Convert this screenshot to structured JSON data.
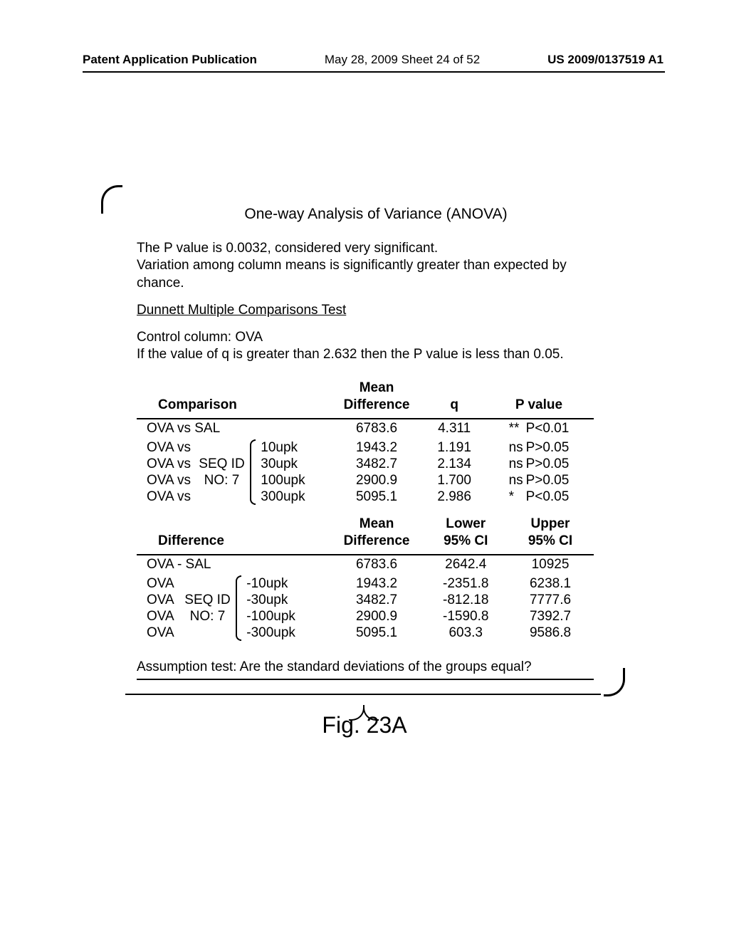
{
  "header": {
    "left": "Patent Application Publication",
    "center": "May 28, 2009  Sheet 24 of 52",
    "right": "US 2009/0137519 A1"
  },
  "anova": {
    "title": "One-way Analysis of Variance (ANOVA)",
    "p_line": "The P value is 0.0032, considered very significant.",
    "variation_line": "Variation among column means is significantly greater than expected by chance.",
    "dunnett_heading": "Dunnett Multiple Comparisons Test",
    "control_line": "Control column: OVA",
    "q_line": "If the value of q is greater than 2.632 then the P value is less than 0.05.",
    "assumption": "Assumption test: Are the standard deviations of the groups equal?"
  },
  "table1": {
    "headers": [
      "Comparison",
      "Mean Difference",
      "q",
      "P value"
    ],
    "group_label_line1": "SEQ ID",
    "group_label_line2": "NO: 7",
    "rows": [
      {
        "left": "OVA vs SAL",
        "mid": "",
        "right": "",
        "mean": "6783.6",
        "q": "4.311",
        "sig": "**",
        "p": "P<0.01"
      },
      {
        "left": "OVA vs",
        "mid": "",
        "right": "10upk",
        "mean": "1943.2",
        "q": "1.191",
        "sig": "ns",
        "p": "P>0.05"
      },
      {
        "left": "OVA vs",
        "mid": "SEQ ID",
        "right": "30upk",
        "mean": "3482.7",
        "q": "2.134",
        "sig": "ns",
        "p": "P>0.05"
      },
      {
        "left": "OVA vs",
        "mid": "NO: 7",
        "right": "100upk",
        "mean": "2900.9",
        "q": "1.700",
        "sig": "ns",
        "p": "P>0.05"
      },
      {
        "left": "OVA vs",
        "mid": "",
        "right": "300upk",
        "mean": "5095.1",
        "q": "2.986",
        "sig": "*",
        "p": "P<0.05"
      }
    ]
  },
  "table2": {
    "headers": [
      "Difference",
      "Mean Difference",
      "Lower 95% CI",
      "Upper 95% CI"
    ],
    "rows": [
      {
        "left": "OVA - SAL",
        "mid": "",
        "right": "",
        "mean": "6783.6",
        "lo": "2642.4",
        "hi": "10925"
      },
      {
        "left": "OVA",
        "mid": "",
        "right": "-10upk",
        "mean": "1943.2",
        "lo": "-2351.8",
        "hi": "6238.1"
      },
      {
        "left": "OVA",
        "mid": "SEQ ID",
        "right": "-30upk",
        "mean": "3482.7",
        "lo": "-812.18",
        "hi": "7777.6"
      },
      {
        "left": "OVA",
        "mid": "NO: 7",
        "right": "-100upk",
        "mean": "2900.9",
        "lo": "-1590.8",
        "hi": "7392.7"
      },
      {
        "left": "OVA",
        "mid": "",
        "right": "-300upk",
        "mean": "5095.1",
        "lo": "603.3",
        "hi": "9586.8"
      }
    ]
  },
  "figure_label": "Fig. 23A"
}
